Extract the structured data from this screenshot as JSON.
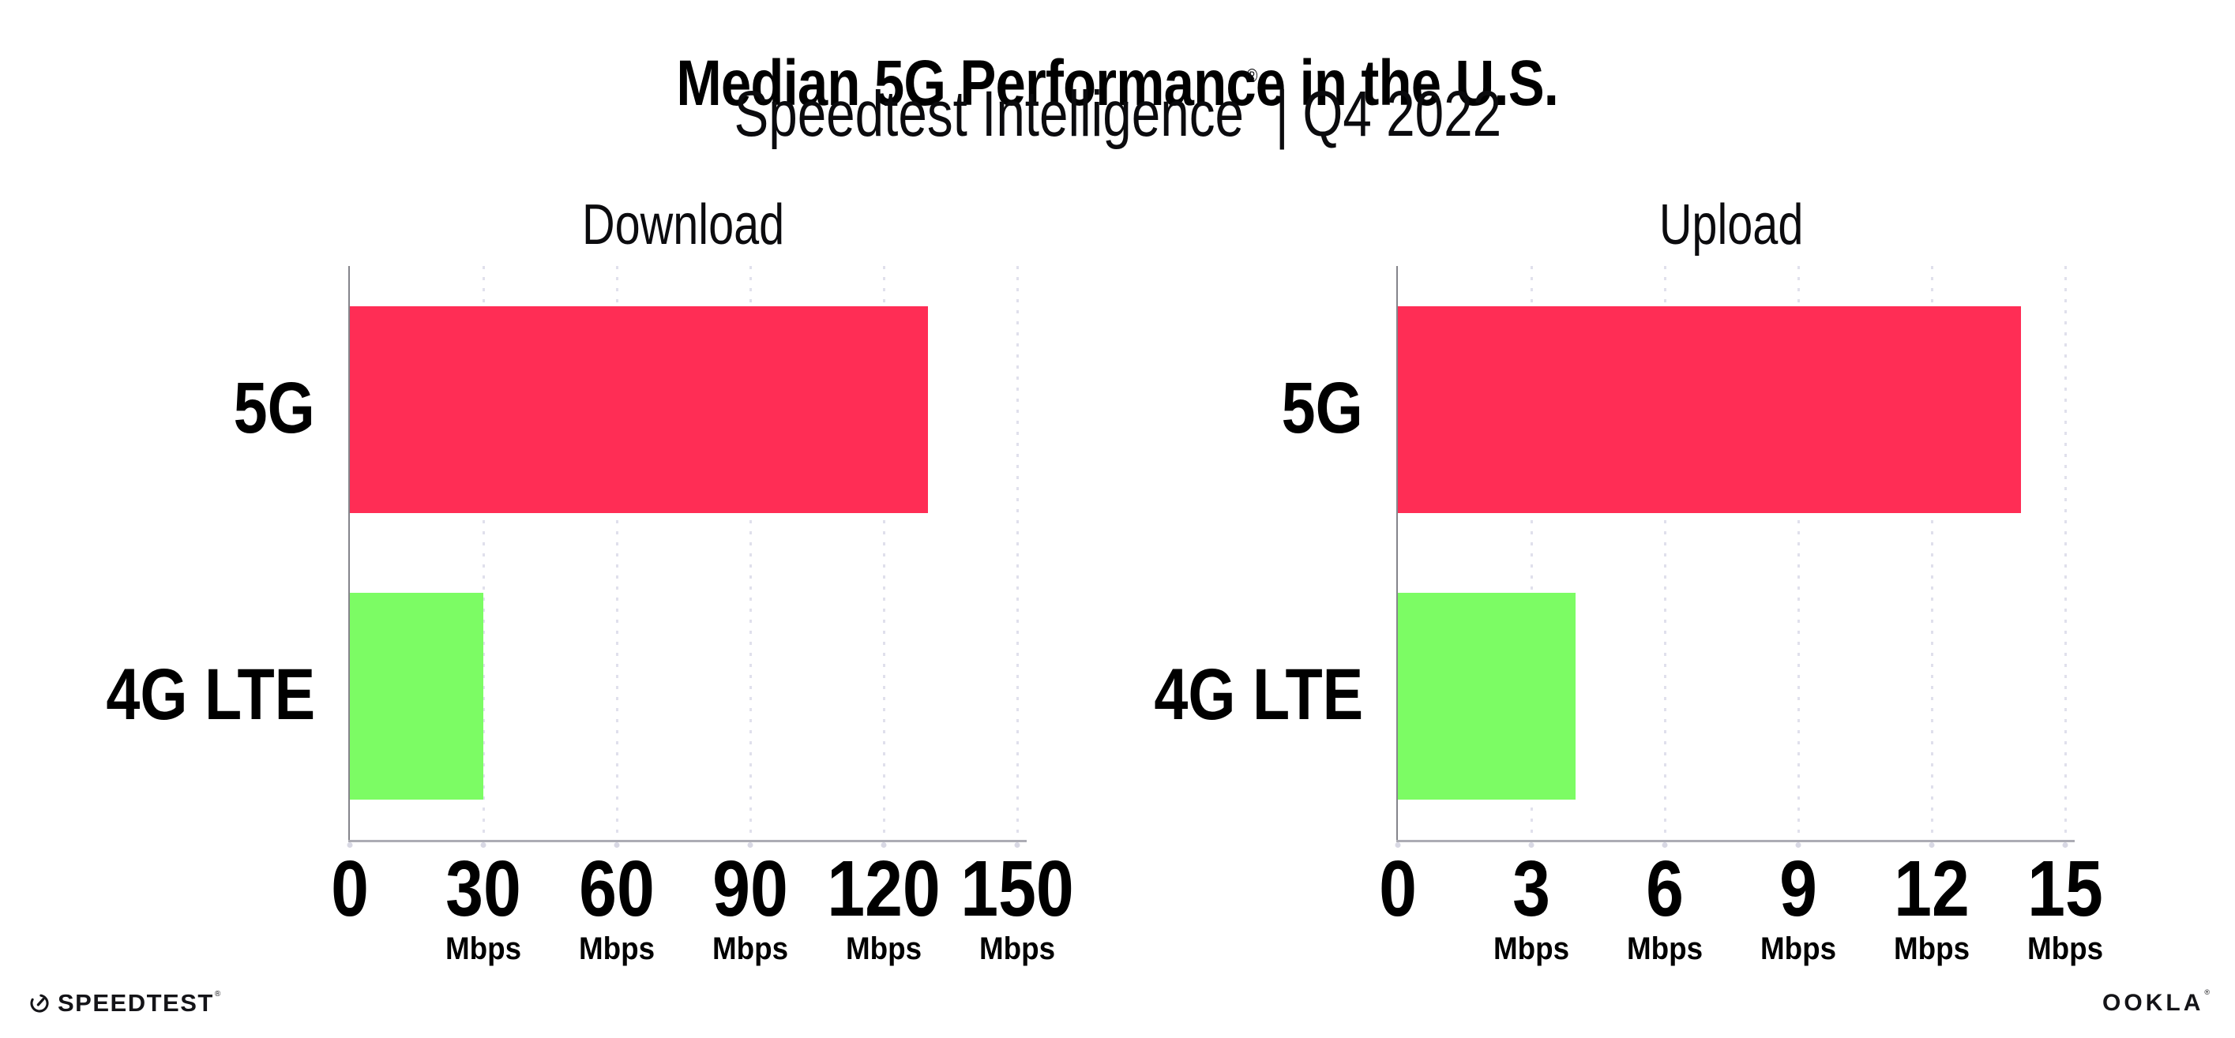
{
  "header": {
    "title": "Median 5G Performance in the U.S.",
    "subtitle": {
      "product": "Speedtest Intelligence",
      "registered": "®",
      "separator": "|",
      "period": "Q4 2022"
    }
  },
  "chart_data": [
    {
      "type": "bar",
      "orientation": "horizontal",
      "title": "Download",
      "categories": [
        "5G",
        "4G LTE"
      ],
      "values": [
        130,
        30
      ],
      "unit": "Mbps",
      "xlim": [
        0,
        150
      ],
      "xticks": [
        0,
        30,
        60,
        90,
        120,
        150
      ],
      "colors": [
        "#FF2D55",
        "#7CFC64"
      ],
      "grid": "vertical-dotted",
      "legend": "none"
    },
    {
      "type": "bar",
      "orientation": "horizontal",
      "title": "Upload",
      "categories": [
        "5G",
        "4G LTE"
      ],
      "values": [
        14,
        4
      ],
      "unit": "Mbps",
      "xlim": [
        0,
        15
      ],
      "xticks": [
        0,
        3,
        6,
        9,
        12,
        15
      ],
      "colors": [
        "#FF2D55",
        "#7CFC64"
      ],
      "grid": "vertical-dotted",
      "legend": "none"
    }
  ],
  "footer": {
    "speedtest": {
      "label": "SPEEDTEST",
      "mark": "®",
      "icon": "speedtest-gauge-icon"
    },
    "ookla": {
      "label": "OOKLA",
      "mark": "®"
    }
  },
  "colors": {
    "bar_5g": "#FF2D55",
    "bar_4g_lte": "#7CFC64",
    "gridline": "#E0E0EC",
    "axis": "#ACACB4",
    "text": "#000000",
    "background": "#FFFFFF"
  }
}
